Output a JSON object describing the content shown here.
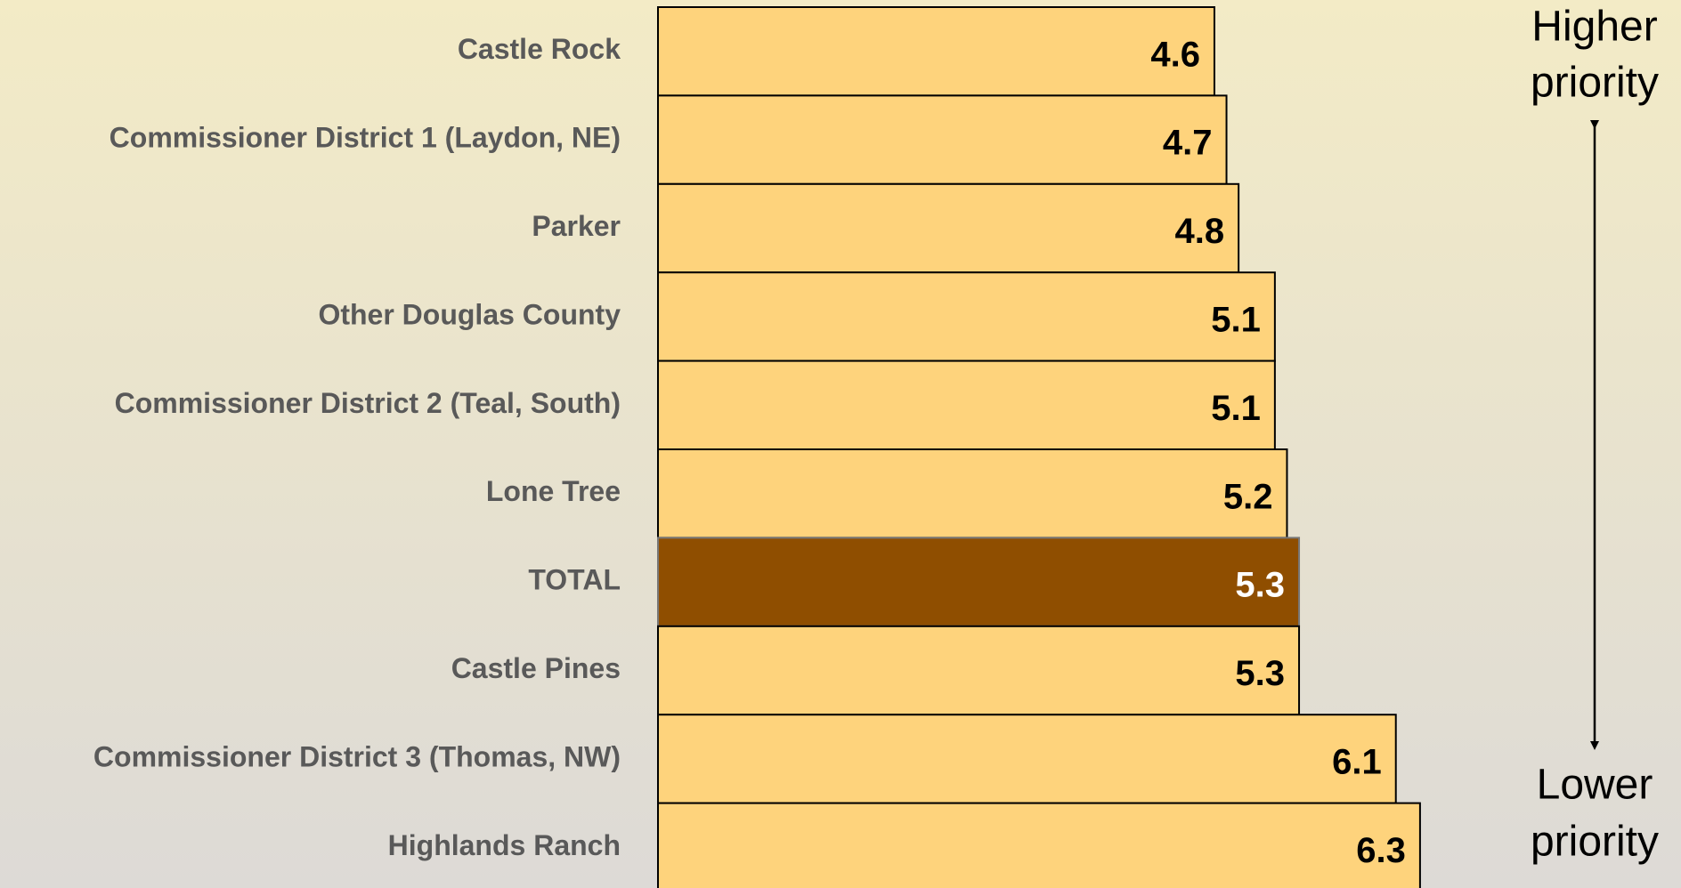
{
  "chart_data": {
    "type": "barh",
    "categories": [
      "Castle Rock",
      "Commissioner District 1 (Laydon, NE)",
      "Parker",
      "Other Douglas County",
      "Commissioner District 2 (Teal, South)",
      "Lone Tree",
      "TOTAL",
      "Castle Pines",
      "Commissioner District 3 (Thomas, NW)",
      "Highlands Ranch"
    ],
    "values": [
      4.6,
      4.7,
      4.8,
      5.1,
      5.1,
      5.2,
      5.3,
      5.3,
      6.1,
      6.3
    ],
    "colors": [
      "#FED37C",
      "#FED37C",
      "#FED37C",
      "#FED37C",
      "#FED37C",
      "#FED37C",
      "#8F4E00",
      "#FED37C",
      "#FED37C",
      "#FED37C"
    ],
    "xlim": [
      0,
      7
    ],
    "annotations": [
      [
        "Higher",
        "priority"
      ],
      [
        "Lower",
        "priority"
      ]
    ]
  }
}
